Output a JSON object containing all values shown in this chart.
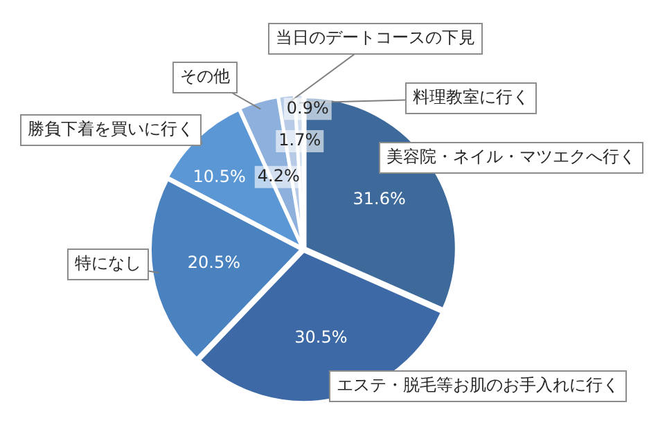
{
  "chart_data": {
    "type": "pie",
    "categories": [
      "美容院・ネイル・マツエクへ行く",
      "エステ・脱毛等お肌のお手入れに行く",
      "特になし",
      "勝負下着を買いに行く",
      "その他",
      "当日のデートコースの下見",
      "料理教室に行く"
    ],
    "values": [
      31.6,
      30.5,
      20.5,
      10.5,
      4.2,
      1.7,
      0.9
    ],
    "value_labels": [
      "31.6%",
      "30.5%",
      "20.5%",
      "10.5%",
      "4.2%",
      "1.7%",
      "0.9%"
    ],
    "colors": [
      "#3e6a9b",
      "#3d6aa6",
      "#4a82c0",
      "#5b97d4",
      "#8eb0dc",
      "#b7cbe7",
      "#d3dff0"
    ],
    "legend": false
  }
}
